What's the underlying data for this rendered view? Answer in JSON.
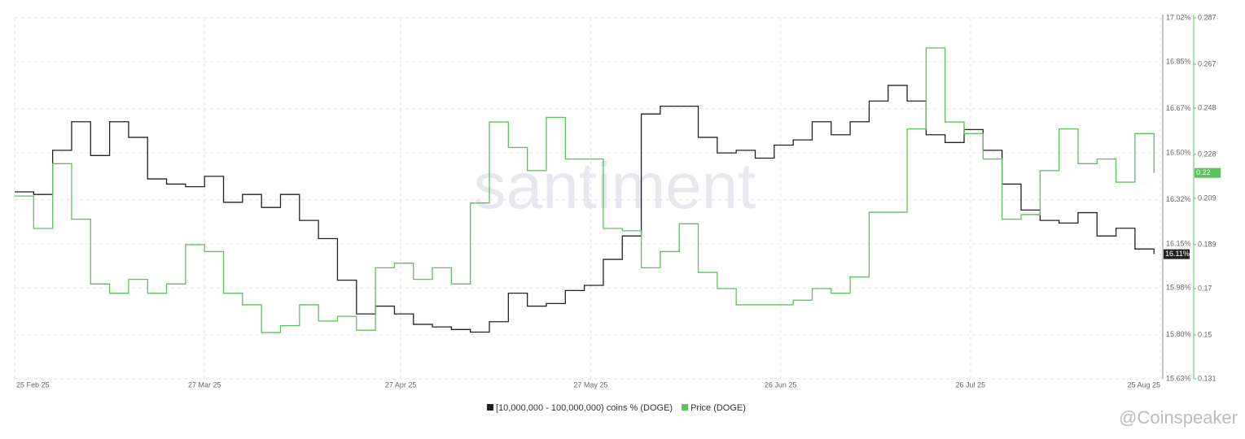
{
  "chart_data": {
    "type": "line",
    "watermark": "santiment",
    "source_mark": "@Coinspeaker",
    "x": [
      "2025-02-25",
      "2025-02-28",
      "2025-03-03",
      "2025-03-06",
      "2025-03-09",
      "2025-03-12",
      "2025-03-15",
      "2025-03-18",
      "2025-03-21",
      "2025-03-24",
      "2025-03-27",
      "2025-03-30",
      "2025-04-02",
      "2025-04-05",
      "2025-04-08",
      "2025-04-11",
      "2025-04-14",
      "2025-04-17",
      "2025-04-20",
      "2025-04-23",
      "2025-04-26",
      "2025-04-29",
      "2025-05-02",
      "2025-05-05",
      "2025-05-08",
      "2025-05-11",
      "2025-05-14",
      "2025-05-17",
      "2025-05-20",
      "2025-05-23",
      "2025-05-26",
      "2025-05-29",
      "2025-06-01",
      "2025-06-04",
      "2025-06-07",
      "2025-06-10",
      "2025-06-13",
      "2025-06-16",
      "2025-06-19",
      "2025-06-22",
      "2025-06-25",
      "2025-06-28",
      "2025-07-01",
      "2025-07-04",
      "2025-07-07",
      "2025-07-10",
      "2025-07-13",
      "2025-07-16",
      "2025-07-19",
      "2025-07-22",
      "2025-07-25",
      "2025-07-28",
      "2025-07-31",
      "2025-08-03",
      "2025-08-06",
      "2025-08-09",
      "2025-08-12",
      "2025-08-15",
      "2025-08-18",
      "2025-08-21",
      "2025-08-24"
    ],
    "xlim": [
      "2025-02-25",
      "2025-08-25"
    ],
    "xticks": [
      {
        "value": "2025-02-25",
        "label": "25 Feb 25"
      },
      {
        "value": "2025-03-27",
        "label": "27 Mar 25"
      },
      {
        "value": "2025-04-27",
        "label": "27 Apr 25"
      },
      {
        "value": "2025-05-27",
        "label": "27 May 25"
      },
      {
        "value": "2025-06-26",
        "label": "26 Jun 25"
      },
      {
        "value": "2025-07-26",
        "label": "26 Jul 25"
      },
      {
        "value": "2025-08-25",
        "label": "25 Aug 25"
      }
    ],
    "ylim": [
      15.63,
      17.02
    ],
    "yticks": [
      {
        "value": 15.63,
        "label": "15.63%"
      },
      {
        "value": 15.8,
        "label": "15.80%"
      },
      {
        "value": 15.98,
        "label": "15.98%"
      },
      {
        "value": 16.15,
        "label": "16.15%"
      },
      {
        "value": 16.32,
        "label": "16.32%"
      },
      {
        "value": 16.5,
        "label": "16.50%"
      },
      {
        "value": 16.67,
        "label": "16.67%"
      },
      {
        "value": 16.85,
        "label": "16.85%"
      },
      {
        "value": 17.02,
        "label": "17.02%"
      }
    ],
    "y2lim": [
      0.131,
      0.287
    ],
    "y2ticks": [
      0.131,
      0.15,
      0.17,
      0.189,
      0.209,
      0.228,
      0.248,
      0.267,
      0.287
    ],
    "grid": true,
    "series": [
      {
        "name": "[10,000,000 - 100,000,000) coins % (DOGE)",
        "color": "#222222",
        "axis": "y",
        "last_label": "16.11%",
        "values": [
          16.35,
          16.34,
          16.51,
          16.62,
          16.49,
          16.62,
          16.56,
          16.4,
          16.38,
          16.37,
          16.41,
          16.31,
          16.34,
          16.29,
          16.34,
          16.24,
          16.17,
          16.01,
          15.88,
          15.91,
          15.88,
          15.84,
          15.83,
          15.82,
          15.81,
          15.85,
          15.96,
          15.91,
          15.92,
          15.97,
          15.99,
          16.09,
          16.18,
          16.65,
          16.68,
          16.68,
          16.56,
          16.5,
          16.51,
          16.48,
          16.53,
          16.55,
          16.62,
          16.57,
          16.62,
          16.7,
          16.76,
          16.7,
          16.57,
          16.54,
          16.59,
          16.51,
          16.38,
          16.28,
          16.24,
          16.23,
          16.27,
          16.18,
          16.21,
          16.13,
          16.11
        ]
      },
      {
        "name": "Price (DOGE)",
        "color": "#5ac35a",
        "axis": "y2",
        "last_label": "0.22",
        "values": [
          0.21,
          0.196,
          0.224,
          0.2,
          0.172,
          0.168,
          0.174,
          0.168,
          0.172,
          0.189,
          0.186,
          0.168,
          0.163,
          0.151,
          0.154,
          0.163,
          0.156,
          0.158,
          0.152,
          0.179,
          0.181,
          0.174,
          0.179,
          0.172,
          0.207,
          0.242,
          0.231,
          0.221,
          0.244,
          0.226,
          0.226,
          0.196,
          0.195,
          0.179,
          0.186,
          0.198,
          0.177,
          0.17,
          0.163,
          0.163,
          0.163,
          0.165,
          0.17,
          0.168,
          0.175,
          0.203,
          0.203,
          0.239,
          0.274,
          0.242,
          0.237,
          0.226,
          0.2,
          0.202,
          0.221,
          0.239,
          0.224,
          0.226,
          0.216,
          0.237,
          0.22
        ]
      }
    ]
  }
}
